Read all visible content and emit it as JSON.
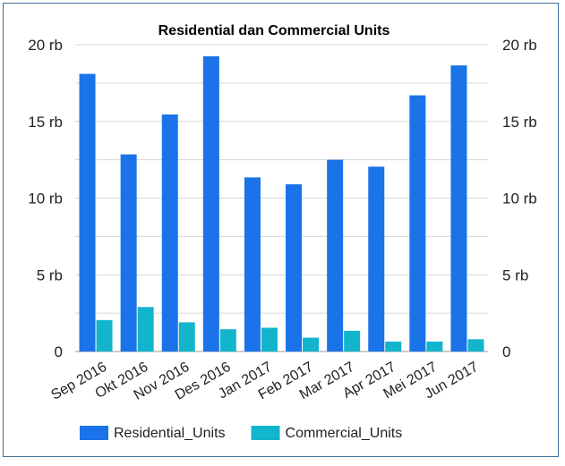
{
  "chart_data": {
    "type": "bar",
    "title": "Residential dan Commercial Units",
    "categories": [
      "Sep 2016",
      "Okt 2016",
      "Nov 2016",
      "Des 2016",
      "Jan 2017",
      "Feb 2017",
      "Mar 2017",
      "Apr 2017",
      "Mei 2017",
      "Jun 2017"
    ],
    "series": [
      {
        "name": "Residential_Units",
        "color": "#1a73e8",
        "values": [
          18100,
          12850,
          15450,
          19250,
          11350,
          10900,
          12500,
          12050,
          16700,
          18650
        ]
      },
      {
        "name": "Commercial_Units",
        "color": "#12b5cb",
        "values": [
          2050,
          2900,
          1900,
          1450,
          1550,
          900,
          1350,
          650,
          650,
          800
        ]
      }
    ],
    "ylim": [
      0,
      20000
    ],
    "yticks": [
      0,
      5000,
      10000,
      15000,
      20000
    ],
    "ytick_labels": [
      "0",
      "5 rb",
      "10 rb",
      "15 rb",
      "20 rb"
    ],
    "grid": true,
    "legend": "bottom-left",
    "xlabel": "",
    "ylabel": ""
  }
}
